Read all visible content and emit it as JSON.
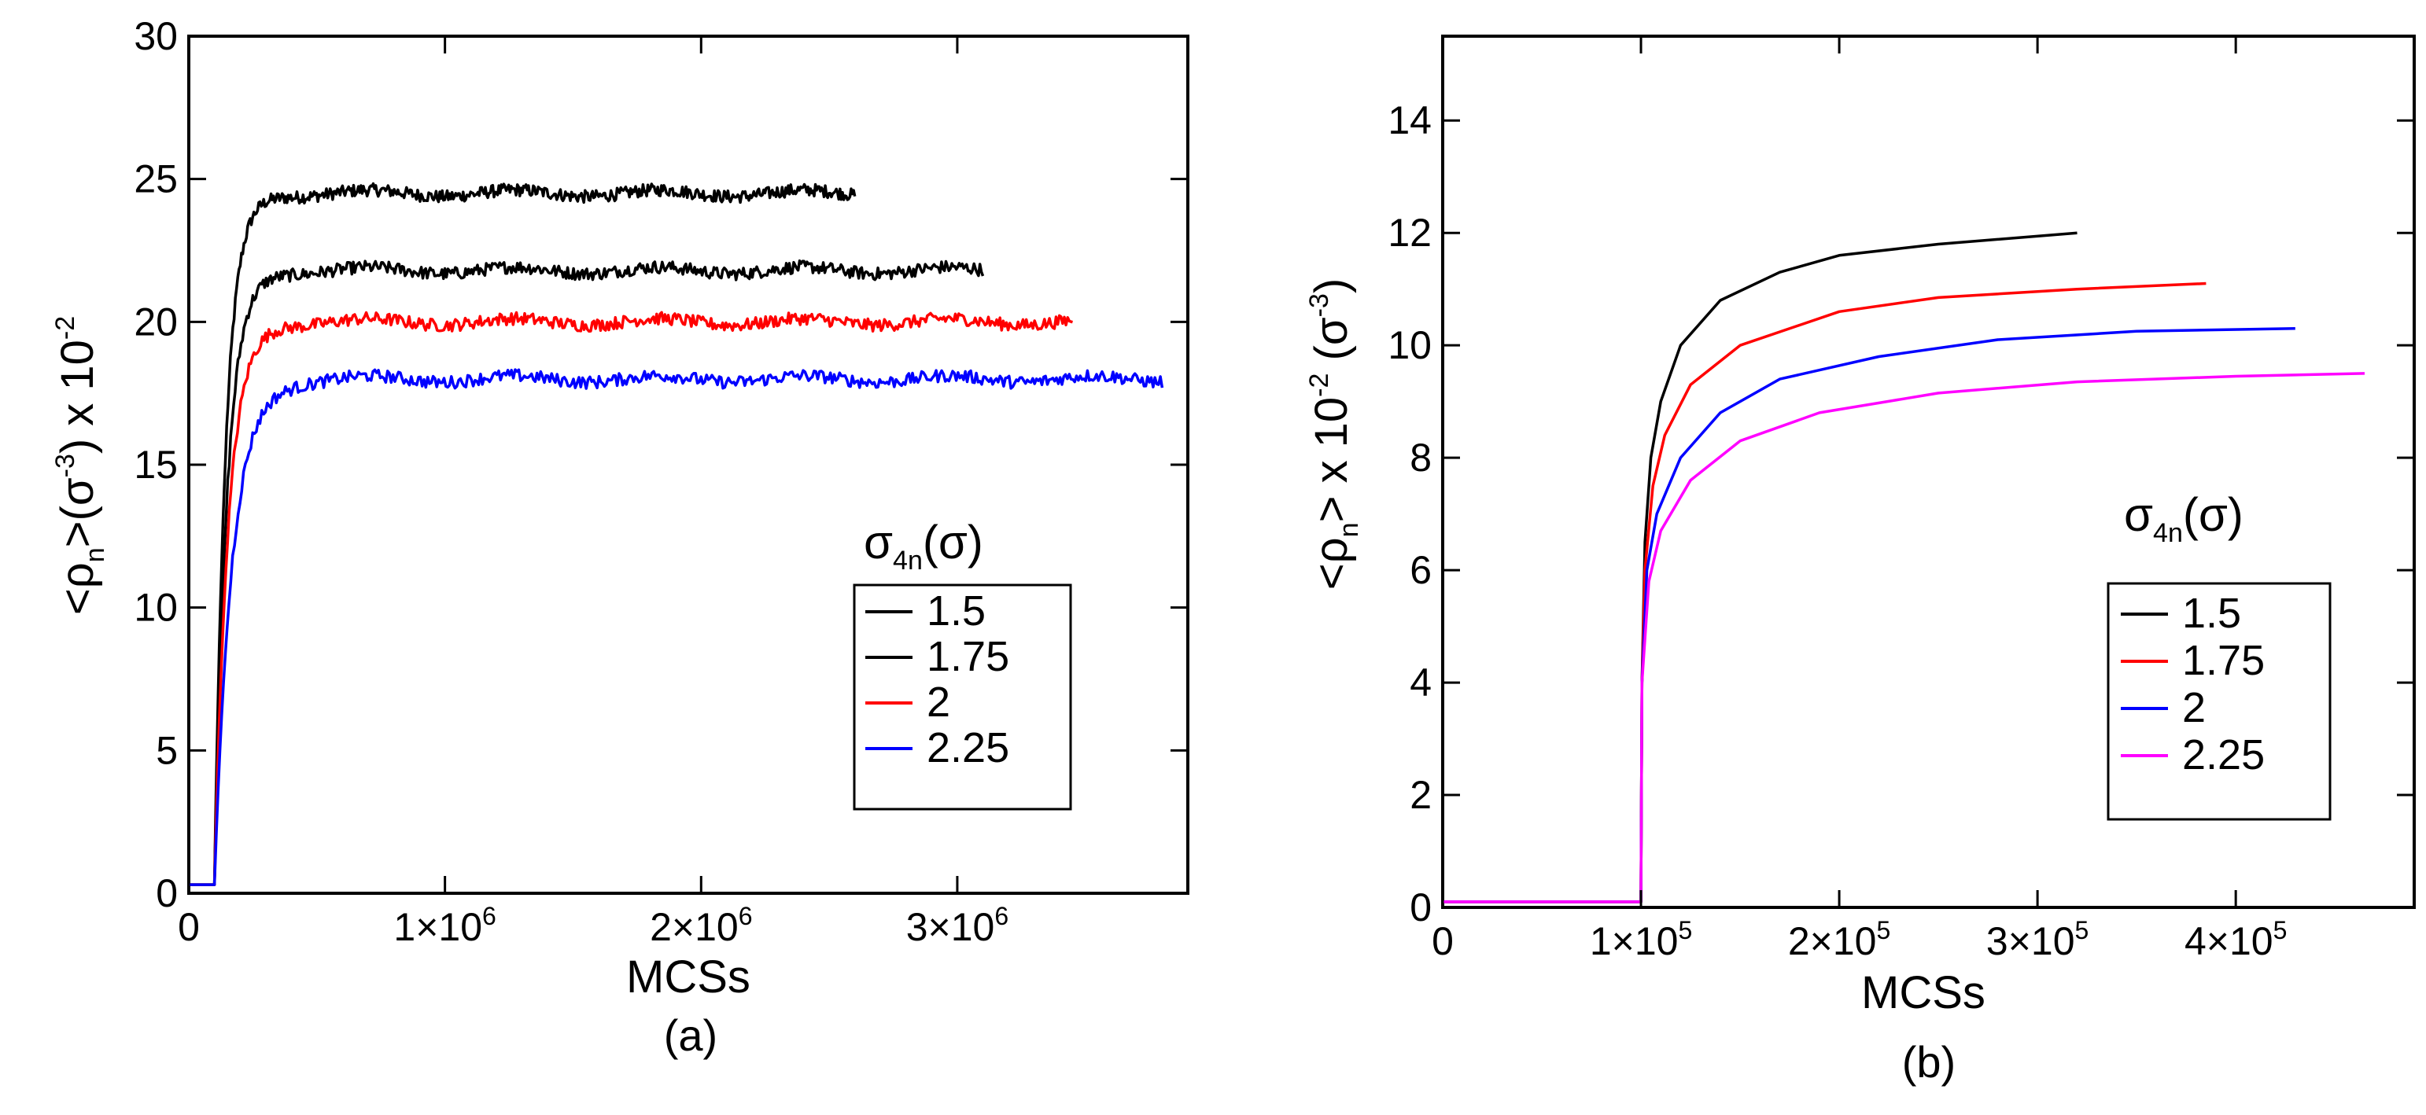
{
  "chart_data": [
    {
      "id": "a",
      "type": "line",
      "panel_label": "(a)",
      "xlabel": "MCSs",
      "ylabel": {
        "rho": "<ρ",
        "n": "n",
        "mid": ">(σ",
        "e3": "-3",
        "mid2": ") x 10",
        "e2": "-2"
      },
      "xlim": [
        0,
        3900000
      ],
      "ylim": [
        0,
        30
      ],
      "yticks": [
        "0",
        "5",
        "10",
        "15",
        "20",
        "25",
        "30"
      ],
      "yticks_values": [
        0,
        5,
        10,
        15,
        20,
        25,
        30
      ],
      "xticks": [
        {
          "value": 0,
          "label": "0"
        },
        {
          "value": 1000000,
          "label": "1×10",
          "exp": "6"
        },
        {
          "value": 2000000,
          "label": "2×10",
          "exp": "6"
        },
        {
          "value": 3000000,
          "label": "3×10",
          "exp": "6"
        }
      ],
      "legend": {
        "title": {
          "sigma": "σ",
          "sub": "4n",
          "rest": "(σ)"
        },
        "position": "bottom-right"
      },
      "series": [
        {
          "name": "1.5",
          "color": "#000000",
          "x_start": 100000,
          "x_end": 2600000,
          "plateau": 24.5,
          "start_value": 0.3,
          "tau": 45000
        },
        {
          "name": "1.75",
          "color": "#000000",
          "x_start": 100000,
          "x_end": 3100000,
          "plateau": 21.8,
          "start_value": 0.3,
          "tau": 50000
        },
        {
          "name": "2",
          "color": "#ff0000",
          "x_start": 100000,
          "x_end": 3450000,
          "plateau": 20.0,
          "start_value": 0.3,
          "tau": 55000
        },
        {
          "name": "2.25",
          "color": "#0000ff",
          "x_start": 100000,
          "x_end": 3800000,
          "plateau": 18.0,
          "start_value": 0.3,
          "tau": 70000
        }
      ]
    },
    {
      "id": "b",
      "type": "line",
      "panel_label": "(b)",
      "xlabel": "MCSs",
      "ylabel": {
        "rho": "<ρ",
        "n": "n",
        "mid": "> x 10",
        "e2": "-2",
        "mid2": " (σ",
        "e3": "-3",
        "end": ")"
      },
      "xlim": [
        0,
        490000
      ],
      "ylim": [
        0,
        15.5
      ],
      "yticks": [
        "0",
        "2",
        "4",
        "6",
        "8",
        "10",
        "12",
        "14"
      ],
      "yticks_values": [
        0,
        2,
        4,
        6,
        8,
        10,
        12,
        14
      ],
      "xticks": [
        {
          "value": 0,
          "label": "0"
        },
        {
          "value": 100000,
          "label": "1×10",
          "exp": "5"
        },
        {
          "value": 200000,
          "label": "2×10",
          "exp": "5"
        },
        {
          "value": 300000,
          "label": "3×10",
          "exp": "5"
        },
        {
          "value": 400000,
          "label": "4×10",
          "exp": "5"
        }
      ],
      "legend": {
        "title": {
          "sigma": "σ",
          "sub": "4n",
          "rest": "(σ)"
        },
        "position": "bottom-right"
      },
      "series": [
        {
          "name": "1.5",
          "color": "#000000",
          "x_start": 100000,
          "x_end": 320000,
          "points": [
            [
              100000,
              0.1
            ],
            [
              100500,
              4
            ],
            [
              102000,
              6.5
            ],
            [
              105000,
              8.0
            ],
            [
              110000,
              9.0
            ],
            [
              120000,
              10.0
            ],
            [
              140000,
              10.8
            ],
            [
              170000,
              11.3
            ],
            [
              200000,
              11.6
            ],
            [
              250000,
              11.8
            ],
            [
              320000,
              12.0
            ]
          ]
        },
        {
          "name": "1.75",
          "color": "#ff0000",
          "x_start": 100000,
          "x_end": 385000,
          "points": [
            [
              100000,
              0.1
            ],
            [
              100500,
              4
            ],
            [
              102000,
              6.0
            ],
            [
              106000,
              7.5
            ],
            [
              112000,
              8.4
            ],
            [
              125000,
              9.3
            ],
            [
              150000,
              10.0
            ],
            [
              200000,
              10.6
            ],
            [
              250000,
              10.85
            ],
            [
              320000,
              11.0
            ],
            [
              385000,
              11.1
            ]
          ]
        },
        {
          "name": "2",
          "color": "#0000ff",
          "x_start": 100000,
          "x_end": 430000,
          "points": [
            [
              100000,
              0.1
            ],
            [
              100500,
              4
            ],
            [
              103000,
              6.0
            ],
            [
              108000,
              7.0
            ],
            [
              120000,
              8.0
            ],
            [
              140000,
              8.8
            ],
            [
              170000,
              9.4
            ],
            [
              220000,
              9.8
            ],
            [
              280000,
              10.1
            ],
            [
              350000,
              10.25
            ],
            [
              430000,
              10.3
            ]
          ]
        },
        {
          "name": "2.25",
          "color": "#ff00ff",
          "x_start": 100000,
          "x_end": 465000,
          "points": [
            [
              100000,
              0.1
            ],
            [
              100500,
              4
            ],
            [
              104000,
              5.8
            ],
            [
              110000,
              6.7
            ],
            [
              125000,
              7.6
            ],
            [
              150000,
              8.3
            ],
            [
              190000,
              8.8
            ],
            [
              250000,
              9.15
            ],
            [
              320000,
              9.35
            ],
            [
              400000,
              9.45
            ],
            [
              465000,
              9.5
            ]
          ]
        }
      ]
    }
  ]
}
